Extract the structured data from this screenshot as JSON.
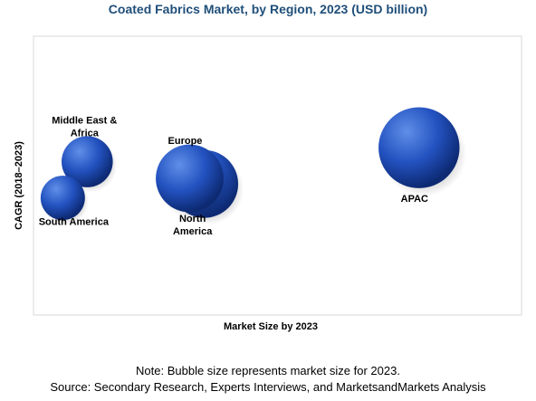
{
  "title": "Coated Fabrics Market, by Region, 2023 (USD billion)",
  "note": "Note: Bubble size represents market size for 2023.",
  "source": "Source: Secondary Research, Experts Interviews, and MarketsandMarkets Analysis",
  "chart_data": {
    "type": "scatter",
    "title": "Coated Fabrics Market, by Region, 2023 (USD billion)",
    "xlabel": "Market Size by 2023",
    "ylabel": "CAGR (2018–2023)",
    "grid": false,
    "legend": "none",
    "xlim": [
      0,
      10
    ],
    "ylim": [
      0,
      10
    ],
    "bubble_color": "#1f4fb3",
    "series": [
      {
        "points": [
          {
            "label": "Middle East & Africa",
            "x": 1.1,
            "y": 5.5,
            "size": 2.0
          },
          {
            "label": "South America",
            "x": 0.6,
            "y": 4.2,
            "size": 1.5
          },
          {
            "label": "North America",
            "x": 3.5,
            "y": 4.7,
            "size": 3.5
          },
          {
            "label": "Europe",
            "x": 3.2,
            "y": 4.9,
            "size": 3.5
          },
          {
            "label": "APAC",
            "x": 7.9,
            "y": 6.0,
            "size": 5.0
          }
        ]
      }
    ]
  }
}
